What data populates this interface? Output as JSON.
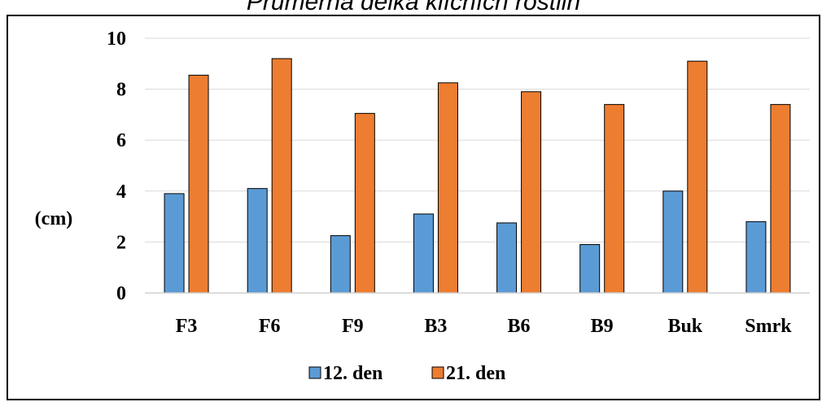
{
  "chart_data": {
    "type": "bar",
    "title": "Průměrná délka klíčních rostlin",
    "ylabel": "(cm)",
    "xlabel": "",
    "categories": [
      "F3",
      "F6",
      "F9",
      "B3",
      "B6",
      "B9",
      "Buk",
      "Smrk"
    ],
    "series": [
      {
        "name": "12. den",
        "color": "#5b9bd5",
        "values": [
          3.9,
          4.1,
          2.25,
          3.1,
          2.75,
          1.9,
          4.0,
          2.8
        ]
      },
      {
        "name": "21. den",
        "color": "#ed7d31",
        "values": [
          8.55,
          9.2,
          7.05,
          8.25,
          7.9,
          7.4,
          9.1,
          7.4
        ]
      }
    ],
    "ylim": [
      0,
      10
    ],
    "yticks": [
      0,
      2,
      4,
      6,
      8,
      10
    ],
    "grid": true,
    "legend_position": "bottom"
  }
}
